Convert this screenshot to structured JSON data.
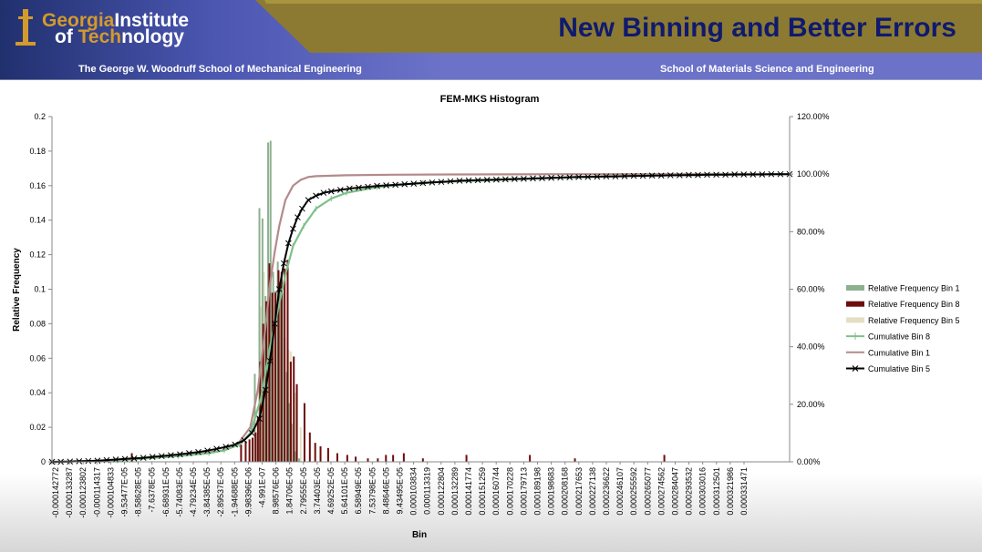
{
  "header": {
    "logo_line1_a": "Georgia",
    "logo_line1_b": "Institute",
    "logo_line2_a": "of ",
    "logo_line2_b": "Tech",
    "logo_line2_c": "nology",
    "title": "New Binning and Better Errors",
    "school_left": "The George W. Woodruff School of Mechanical Engineering",
    "school_right": "School of Materials Science and Engineering"
  },
  "colors": {
    "banner_left": "#20306e",
    "banner_mid": "#6b72c8",
    "banner_right": "#8c7a32",
    "title": "#0f1a6e",
    "gold": "#d39a2c",
    "bin1": "#8db08f",
    "bin8": "#6e0d0d",
    "bin5": "#e2dfc3",
    "cum8": "#7fc08a",
    "cum1": "#b38a8a",
    "cum5": "#000000"
  },
  "chart_data": {
    "type": "bar",
    "title": "FEM-MKS Histogram",
    "xlabel": "Bin",
    "ylabel": "Relative Frequency",
    "ylim": [
      0,
      0.2
    ],
    "y2lim": [
      0,
      1.2
    ],
    "xlim": [
      -0.00014277,
      0.00034
    ],
    "y_ticks": [
      "0",
      "0.02",
      "0.04",
      "0.06",
      "0.08",
      "0.1",
      "0.12",
      "0.14",
      "0.16",
      "0.18",
      "0.2"
    ],
    "y2_ticks": [
      "0.00%",
      "20.00%",
      "40.00%",
      "60.00%",
      "80.00%",
      "100.00%",
      "120.00%"
    ],
    "x_tick_labels": [
      "-0.000142772",
      "-0.000133287",
      "-0.000123802",
      "-0.000114317",
      "-0.000104833",
      "-9.53477E-05",
      "-8.58628E-05",
      "-7.6378E-05",
      "-6.68931E-05",
      "-5.74083E-05",
      "-4.79234E-05",
      "-3.84385E-05",
      "-2.89537E-05",
      "-1.94688E-05",
      "-9.98396E-06",
      "-4.991E-07",
      "8.98576E-06",
      "1.84706E-05",
      "2.79555E-05",
      "3.74403E-05",
      "4.69252E-05",
      "5.64101E-05",
      "6.58949E-05",
      "7.53798E-05",
      "8.48646E-05",
      "9.43495E-05",
      "0.000103834",
      "0.000113319",
      "0.000122804",
      "0.000132289",
      "0.000141774",
      "0.000151259",
      "0.000160744",
      "0.000170228",
      "0.000179713",
      "0.000189198",
      "0.000198683",
      "0.000208168",
      "0.000217653",
      "0.000227138",
      "0.000236622",
      "0.000246107",
      "0.000255592",
      "0.000265077",
      "0.000274562",
      "0.000284047",
      "0.000293532",
      "0.000303016",
      "0.000312501",
      "0.000321986",
      "0.000331471"
    ],
    "legend_position": "right",
    "grid": false,
    "series": [
      {
        "name": "Relative Frequency Bin 1",
        "kind": "bar",
        "x": [
          -1e-05,
          -7e-06,
          -5e-06,
          -3e-06,
          -1.3e-06,
          3e-07,
          2e-06,
          3.5e-06,
          5e-06,
          6.5e-06,
          8e-06,
          9.5e-06,
          1.1e-05,
          1.25e-05,
          1.4e-05,
          1.65e-05,
          1.9e-05
        ],
        "values": [
          0.051,
          0.147,
          0.141,
          0.096,
          0.185,
          0.186,
          0.11,
          0.099,
          0.116,
          0.1,
          0.098,
          0.072,
          0.052,
          0.034,
          0.022,
          0.006,
          0.002
        ]
      },
      {
        "name": "Relative Frequency Bin 8",
        "kind": "bar",
        "x": [
          -9.05e-05,
          -1.9e-05,
          -1.6e-05,
          -1.35e-05,
          -1.15e-05,
          -9.5e-06,
          -8e-06,
          -6.5e-06,
          -4.5e-06,
          -2.5e-06,
          -5e-07,
          1.5e-06,
          3.5e-06,
          5.5e-06,
          7.5e-06,
          9.5e-06,
          1.15e-05,
          1.35e-05,
          1.55e-05,
          1.75e-05,
          2.25e-05,
          2.6e-05,
          2.95e-05,
          3.3e-05,
          3.8e-05,
          4.4e-05,
          5.05e-05,
          5.6e-05,
          6.4e-05,
          7.05e-05,
          7.58e-05,
          8.05e-05,
          8.75e-05,
          0.0001,
          0.0001285,
          0.00017,
          0.0001995,
          0.000258
        ],
        "values": [
          0.005,
          0.01,
          0.012,
          0.013,
          0.014,
          0.017,
          0.026,
          0.058,
          0.08,
          0.093,
          0.115,
          0.098,
          0.098,
          0.111,
          0.11,
          0.112,
          0.117,
          0.058,
          0.061,
          0.045,
          0.034,
          0.017,
          0.011,
          0.009,
          0.008,
          0.005,
          0.004,
          0.003,
          0.002,
          0.002,
          0.004,
          0.004,
          0.005,
          0.002,
          0.004,
          0.004,
          0.002,
          0.004
        ]
      },
      {
        "name": "Relative Frequency Bin 5",
        "kind": "bar",
        "x": [
          -6e-06,
          -4e-06,
          3e-06,
          8e-06,
          1.2e-05,
          1.35e-05,
          1.65e-05,
          2e-05
        ],
        "values": [
          0.09,
          0.11,
          0.09,
          0.08,
          0.065,
          0.064,
          0.04,
          0.02
        ]
      },
      {
        "name": "Cumulative Bin 8",
        "kind": "line",
        "axis": "y2",
        "x": [
          -0.000142772,
          -0.0001,
          -6e-05,
          -4e-05,
          -3e-05,
          -2e-05,
          -1.3e-05,
          -6e-06,
          0.0,
          6e-06,
          1e-05,
          1.5e-05,
          2.2e-05,
          3e-05,
          4e-05,
          5e-05,
          7e-05,
          0.0001,
          0.00015,
          0.0002,
          0.00025,
          0.00034
        ],
        "values": [
          0.0,
          0.005,
          0.02,
          0.03,
          0.04,
          0.06,
          0.1,
          0.22,
          0.4,
          0.55,
          0.65,
          0.75,
          0.82,
          0.88,
          0.915,
          0.935,
          0.955,
          0.97,
          0.98,
          0.99,
          0.995,
          1.0
        ]
      },
      {
        "name": "Cumulative Bin 1",
        "kind": "line",
        "axis": "y2",
        "x": [
          -0.000142772,
          -0.0001,
          -6e-05,
          -3e-05,
          -2e-05,
          -1.3e-05,
          -8e-06,
          -3e-06,
          0.0,
          3e-06,
          6e-06,
          1e-05,
          1.5e-05,
          2e-05,
          2.5e-05,
          3e-05,
          5e-05,
          8e-05,
          0.00012,
          0.0002,
          0.00034
        ],
        "values": [
          0.0,
          0.005,
          0.02,
          0.04,
          0.07,
          0.12,
          0.25,
          0.47,
          0.62,
          0.73,
          0.82,
          0.91,
          0.96,
          0.98,
          0.99,
          0.993,
          0.996,
          0.998,
          0.999,
          1.0,
          1.0
        ]
      },
      {
        "name": "Cumulative Bin 5",
        "kind": "line",
        "axis": "y2",
        "marker": "x",
        "x": [
          -0.000142772,
          -0.000137,
          -0.000131,
          -0.000125,
          -0.000119,
          -0.000113,
          -0.000107,
          -0.000101,
          -9.5e-05,
          -8.9e-05,
          -8.3e-05,
          -7.7e-05,
          -7.1e-05,
          -6.5e-05,
          -5.9e-05,
          -5.3e-05,
          -4.7e-05,
          -4.1e-05,
          -3.5e-05,
          -2.9e-05,
          -2.3e-05,
          -1.7e-05,
          -1.2e-05,
          -7e-06,
          -3e-06,
          0.0,
          3e-06,
          6e-06,
          9e-06,
          1.2e-05,
          1.5e-05,
          1.8e-05,
          2.1e-05,
          2.5e-05,
          3e-05,
          3.5e-05,
          4e-05,
          4.6e-05,
          5.2e-05,
          5.8e-05,
          6.4e-05,
          7e-05,
          7.6e-05,
          8.2e-05,
          8.8e-05,
          9.4e-05,
          0.0001,
          0.000106,
          0.000112,
          0.000118,
          0.000124,
          0.00013,
          0.000136,
          0.000142,
          0.000148,
          0.000154,
          0.00016,
          0.000166,
          0.000172,
          0.000178,
          0.000184,
          0.00019,
          0.000196,
          0.000202,
          0.000208,
          0.000214,
          0.00022,
          0.000226,
          0.000232,
          0.000238,
          0.000244,
          0.00025,
          0.000256,
          0.000262,
          0.000268,
          0.000274,
          0.00028,
          0.000286,
          0.000292,
          0.000298,
          0.000304,
          0.00031,
          0.000316,
          0.000322,
          0.000328,
          0.000334,
          0.00034
        ],
        "values": [
          0.0,
          0.0,
          0.001,
          0.002,
          0.003,
          0.004,
          0.006,
          0.008,
          0.01,
          0.012,
          0.014,
          0.017,
          0.02,
          0.023,
          0.026,
          0.03,
          0.034,
          0.039,
          0.045,
          0.052,
          0.06,
          0.075,
          0.1,
          0.15,
          0.25,
          0.35,
          0.48,
          0.6,
          0.69,
          0.76,
          0.81,
          0.85,
          0.88,
          0.91,
          0.925,
          0.935,
          0.94,
          0.945,
          0.95,
          0.953,
          0.956,
          0.959,
          0.961,
          0.963,
          0.965,
          0.967,
          0.969,
          0.971,
          0.973,
          0.975,
          0.977,
          0.978,
          0.979,
          0.98,
          0.981,
          0.982,
          0.983,
          0.984,
          0.985,
          0.986,
          0.987,
          0.988,
          0.989,
          0.99,
          0.99,
          0.991,
          0.992,
          0.992,
          0.993,
          0.994,
          0.994,
          0.995,
          0.995,
          0.996,
          0.996,
          0.997,
          0.997,
          0.998,
          0.998,
          0.998,
          0.999,
          0.999,
          0.999,
          0.999,
          1.0,
          1.0,
          1.0
        ]
      }
    ]
  }
}
